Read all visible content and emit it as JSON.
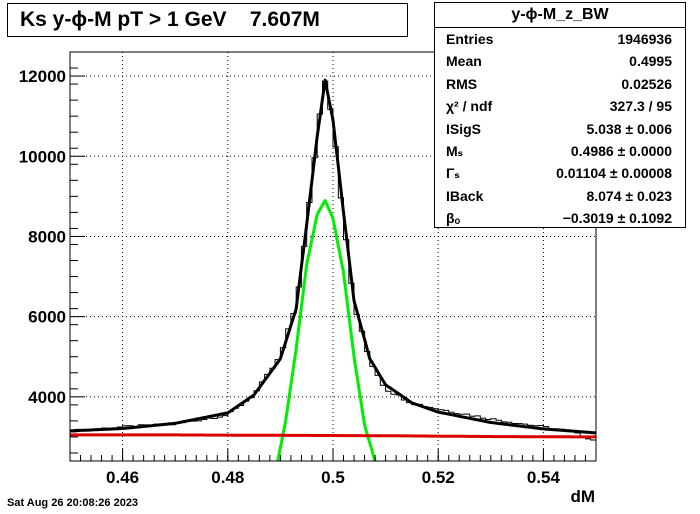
{
  "title": "Ks y-ϕ-M pT > 1 GeV    7.607M",
  "stats": {
    "header": "y-ϕ-M_z_BW",
    "rows": [
      {
        "label": "Entries",
        "value": "1946936"
      },
      {
        "label": "Mean",
        "value": "0.4995"
      },
      {
        "label": "RMS",
        "value": "0.02526"
      },
      {
        "label": "χ² / ndf",
        "value": "327.3 / 95"
      },
      {
        "label": "ISigS",
        "value": "5.038 ± 0.006"
      },
      {
        "label": "Mₛ",
        "value": "0.4986 ± 0.0000"
      },
      {
        "label": "Γₛ",
        "value": "0.01104 ± 0.00008"
      },
      {
        "label": "IBack",
        "value": "8.074 ± 0.023"
      },
      {
        "label": "βₒ",
        "value": "−0.3019 ± 0.1092"
      }
    ]
  },
  "footer": {
    "date": "Sat Aug 26 20:08:26 2023"
  },
  "chart_data": {
    "type": "line",
    "title": "Ks y-ϕ-M pT > 1 GeV    7.607M",
    "xlabel": "dM",
    "ylabel": "",
    "xlim": [
      0.45,
      0.55
    ],
    "ylim": [
      2400,
      12600
    ],
    "grid": true,
    "xticks": [
      "0.46",
      "0.48",
      "0.5",
      "0.52",
      "0.54"
    ],
    "yticks": [
      "4000",
      "6000",
      "8000",
      "10000",
      "12000"
    ],
    "xtick_values": [
      0.46,
      0.48,
      0.5,
      0.52,
      0.54
    ],
    "ytick_values": [
      4000,
      6000,
      8000,
      10000,
      12000
    ],
    "histogram_bin_width": 0.001,
    "series": [
      {
        "role": "histogram",
        "color": "#000000",
        "x": [
          0.45,
          0.46,
          0.47,
          0.48,
          0.485,
          0.49,
          0.493,
          0.495,
          0.497,
          0.4985,
          0.5,
          0.502,
          0.504,
          0.507,
          0.51,
          0.515,
          0.52,
          0.53,
          0.54,
          0.545,
          0.55
        ],
        "y": [
          3150,
          3250,
          3320,
          3550,
          4050,
          5000,
          6300,
          8200,
          10600,
          11950,
          10900,
          8400,
          6300,
          4900,
          4200,
          3850,
          3700,
          3450,
          3250,
          3150,
          2900
        ]
      },
      {
        "role": "total-fit",
        "color": "#000000",
        "x": [
          0.45,
          0.46,
          0.47,
          0.48,
          0.485,
          0.49,
          0.493,
          0.495,
          0.497,
          0.4985,
          0.5,
          0.502,
          0.504,
          0.507,
          0.51,
          0.515,
          0.52,
          0.53,
          0.54,
          0.55
        ],
        "y": [
          3150,
          3210,
          3340,
          3600,
          4050,
          4950,
          6200,
          8300,
          10500,
          11900,
          10900,
          8600,
          6400,
          4950,
          4300,
          3850,
          3620,
          3360,
          3200,
          3100
        ]
      },
      {
        "role": "signal-fit",
        "color": "#00ee00",
        "x": [
          0.4895,
          0.491,
          0.493,
          0.495,
          0.497,
          0.4985,
          0.5,
          0.502,
          0.504,
          0.506,
          0.508
        ],
        "y": [
          2400,
          3400,
          5200,
          7300,
          8550,
          8900,
          8450,
          7100,
          5000,
          3300,
          2400
        ]
      },
      {
        "role": "background-fit",
        "color": "#dd0000",
        "x": [
          0.45,
          0.47,
          0.49,
          0.51,
          0.53,
          0.55
        ],
        "y": [
          3050,
          3050,
          3040,
          3030,
          3010,
          3000
        ]
      }
    ]
  }
}
